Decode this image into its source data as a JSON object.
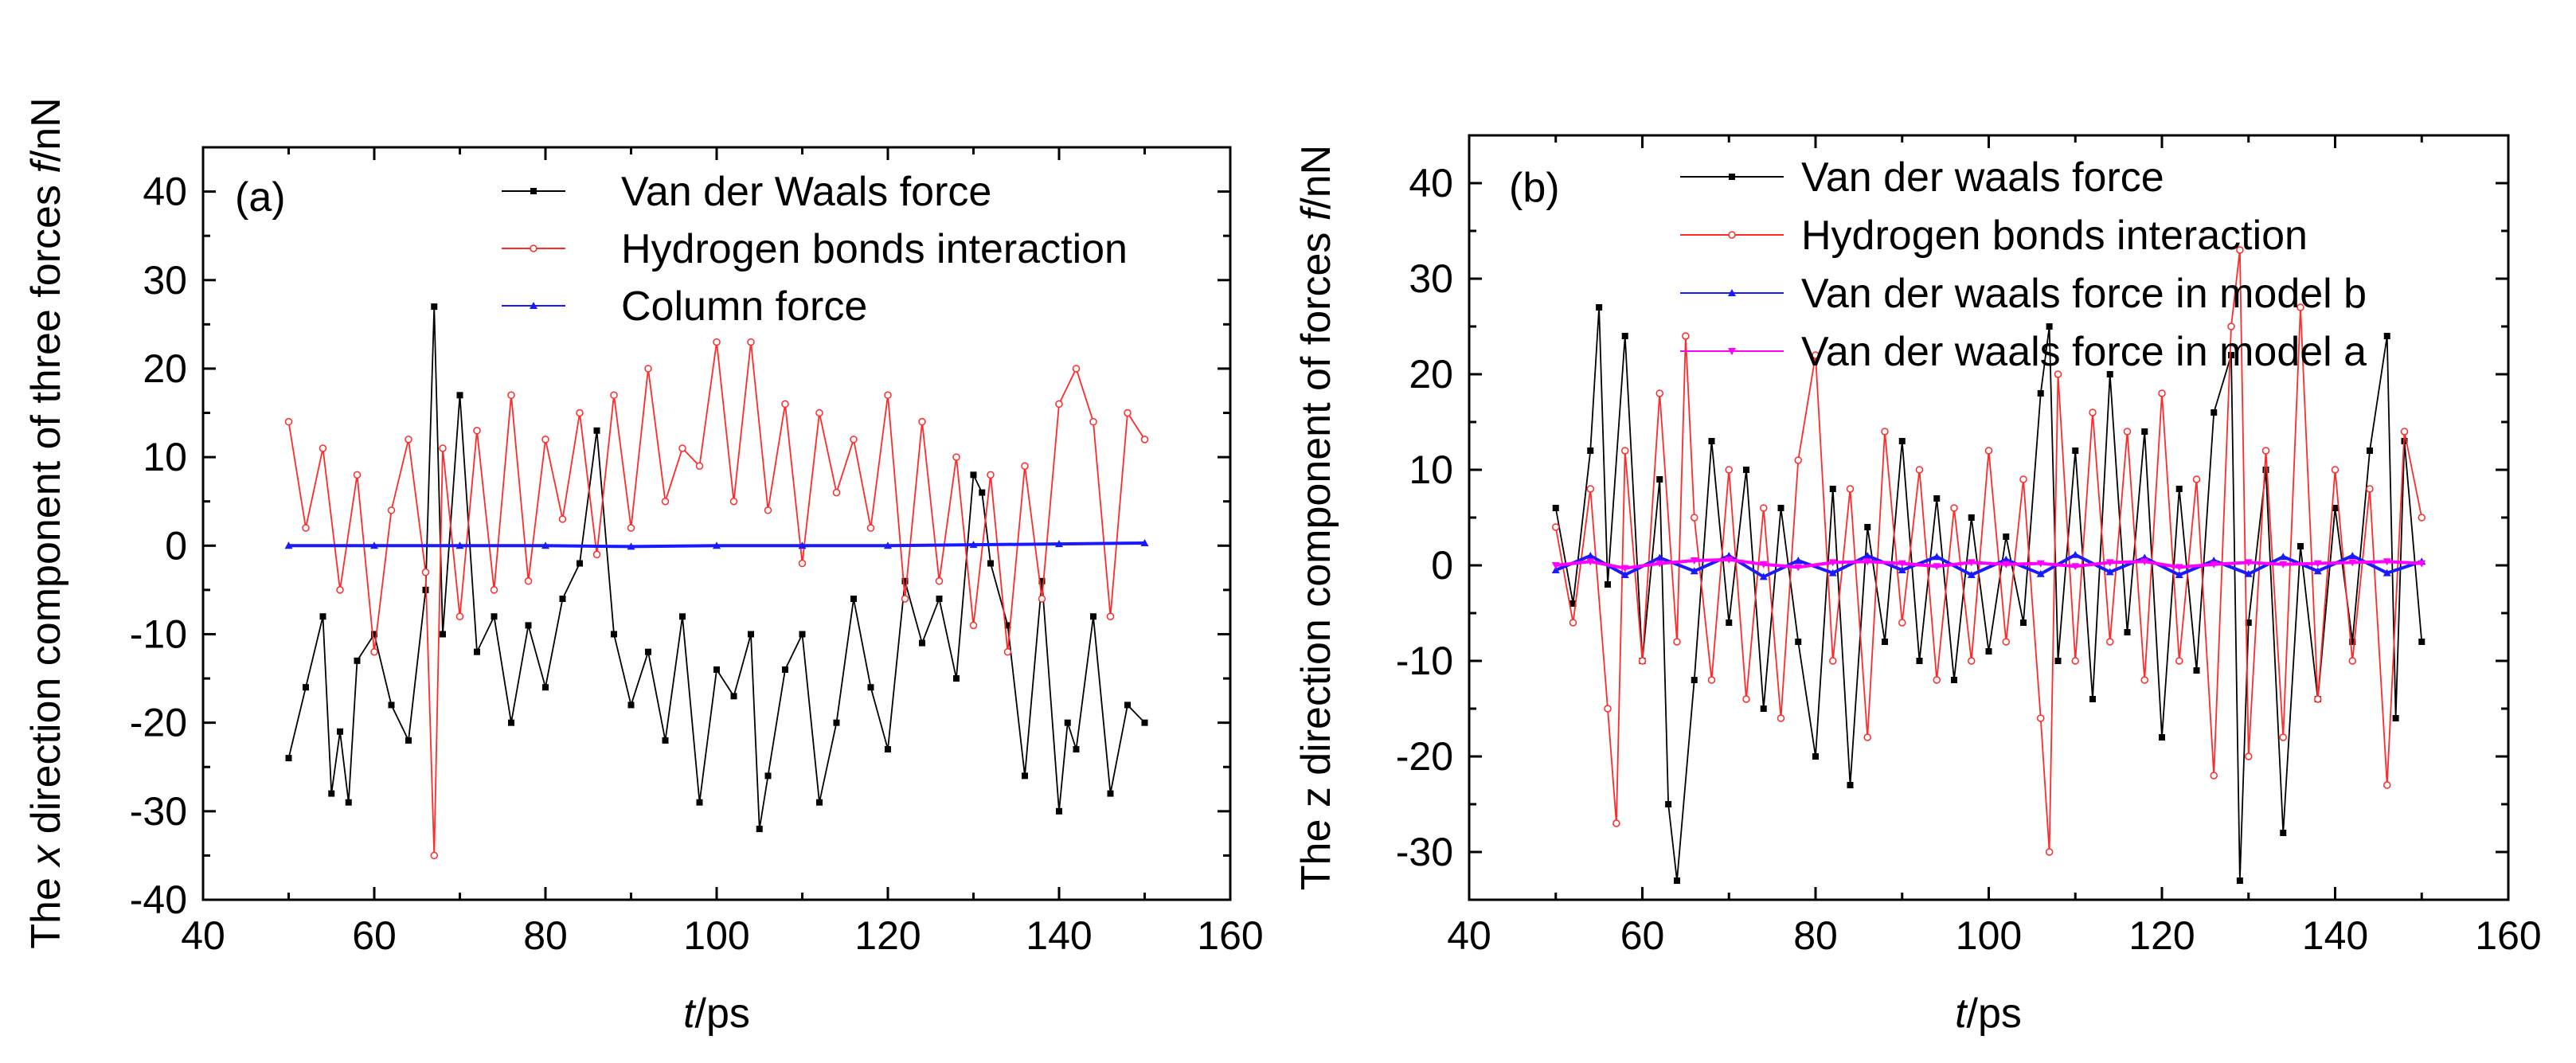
{
  "chart_data": [
    {
      "type": "line",
      "panel_label": "(a)",
      "xlabel_italic": "t",
      "xlabel_rest": "/ps",
      "ylabel_pre": "The ",
      "ylabel_italic": "x",
      "ylabel_mid": " direction component of three forces  ",
      "ylabel_italic2": "f",
      "ylabel_post": "/nN",
      "xlim": [
        40,
        160
      ],
      "ylim": [
        -40,
        45
      ],
      "xticks": [
        40,
        60,
        80,
        100,
        120,
        140,
        160
      ],
      "yticks": [
        -40,
        -30,
        -20,
        -10,
        0,
        10,
        20,
        30,
        40
      ],
      "legend_position": "top-right",
      "series": [
        {
          "name": "Van der Waals force",
          "color": "#000000",
          "marker": "square",
          "x": [
            50,
            52,
            54,
            55,
            56,
            57,
            58,
            60,
            62,
            64,
            66,
            67,
            68,
            70,
            72,
            74,
            76,
            78,
            80,
            82,
            84,
            86,
            88,
            90,
            92,
            94,
            96,
            98,
            100,
            102,
            104,
            105,
            106,
            108,
            110,
            112,
            114,
            116,
            118,
            120,
            122,
            124,
            126,
            128,
            130,
            131,
            132,
            134,
            136,
            138,
            140,
            141,
            142,
            144,
            146,
            148,
            150
          ],
          "values": [
            -24,
            -16,
            -8,
            -28,
            -21,
            -29,
            -13,
            -10,
            -18,
            -22,
            -5,
            27,
            -10,
            17,
            -12,
            -8,
            -20,
            -9,
            -16,
            -6,
            -2,
            13,
            -10,
            -18,
            -12,
            -22,
            -8,
            -29,
            -14,
            -17,
            -10,
            -32,
            -26,
            -14,
            -10,
            -29,
            -20,
            -6,
            -16,
            -23,
            -4,
            -11,
            -6,
            -15,
            8,
            6,
            -2,
            -9,
            -26,
            -4,
            -30,
            -20,
            -23,
            -8,
            -28,
            -18,
            -20
          ]
        },
        {
          "name": "Hydrogen bonds interaction",
          "color": "#ff2a2a",
          "marker": "circle",
          "x": [
            50,
            52,
            54,
            56,
            58,
            60,
            62,
            64,
            66,
            67,
            68,
            70,
            72,
            74,
            76,
            78,
            80,
            82,
            84,
            86,
            88,
            90,
            92,
            94,
            96,
            98,
            100,
            102,
            104,
            106,
            108,
            110,
            112,
            114,
            116,
            118,
            120,
            122,
            124,
            126,
            128,
            130,
            132,
            134,
            136,
            138,
            140,
            142,
            144,
            146,
            148,
            150
          ],
          "values": [
            14,
            2,
            11,
            -5,
            8,
            -12,
            4,
            12,
            -3,
            -35,
            11,
            -8,
            13,
            -5,
            17,
            -4,
            12,
            3,
            15,
            -1,
            17,
            2,
            20,
            5,
            11,
            9,
            23,
            5,
            23,
            4,
            16,
            -2,
            15,
            6,
            12,
            2,
            17,
            -6,
            14,
            -4,
            10,
            -9,
            8,
            -12,
            9,
            -6,
            16,
            20,
            14,
            -8,
            15,
            12
          ]
        },
        {
          "name": "Column force",
          "color": "#1a1aff",
          "marker": "triangle",
          "x": [
            50,
            60,
            70,
            80,
            90,
            100,
            110,
            120,
            130,
            140,
            150
          ],
          "values": [
            0,
            0,
            0,
            0,
            -0.1,
            0,
            0,
            0,
            0.1,
            0.2,
            0.3
          ]
        }
      ]
    },
    {
      "type": "line",
      "panel_label": "(b)",
      "xlabel_italic": "t",
      "xlabel_rest": "/ps",
      "ylabel_pre": "The z direction component of forces ",
      "ylabel_italic": "f",
      "ylabel_post": "/nN",
      "xlim": [
        40,
        160
      ],
      "ylim": [
        -35,
        45
      ],
      "xticks": [
        40,
        60,
        80,
        100,
        120,
        140,
        160
      ],
      "yticks": [
        -30,
        -20,
        -10,
        0,
        10,
        20,
        30,
        40
      ],
      "legend_position": "top-right",
      "series": [
        {
          "name": "Van der waals force",
          "color": "#000000",
          "marker": "square",
          "x": [
            50,
            52,
            54,
            55,
            56,
            58,
            60,
            62,
            63,
            64,
            66,
            68,
            70,
            72,
            74,
            76,
            78,
            80,
            82,
            84,
            86,
            88,
            90,
            92,
            94,
            96,
            98,
            100,
            102,
            104,
            106,
            107,
            108,
            110,
            112,
            114,
            116,
            118,
            120,
            122,
            124,
            126,
            128,
            129,
            130,
            132,
            134,
            136,
            138,
            140,
            142,
            144,
            146,
            147,
            148,
            150
          ],
          "values": [
            6,
            -4,
            12,
            27,
            -2,
            24,
            -10,
            9,
            -25,
            -33,
            -12,
            13,
            -6,
            10,
            -15,
            6,
            -8,
            -20,
            8,
            -23,
            4,
            -8,
            13,
            -10,
            7,
            -12,
            5,
            -9,
            3,
            -6,
            18,
            25,
            -10,
            12,
            -14,
            20,
            -7,
            14,
            -18,
            8,
            -11,
            16,
            22,
            -33,
            -6,
            10,
            -28,
            2,
            -14,
            6,
            -8,
            12,
            24,
            -16,
            13,
            -8
          ]
        },
        {
          "name": "Hydrogen bonds interaction",
          "color": "#ff2a2a",
          "marker": "circle",
          "x": [
            50,
            52,
            54,
            56,
            57,
            58,
            60,
            62,
            64,
            65,
            66,
            68,
            70,
            72,
            74,
            76,
            78,
            80,
            82,
            84,
            86,
            88,
            90,
            92,
            94,
            96,
            98,
            100,
            102,
            104,
            106,
            107,
            108,
            110,
            112,
            114,
            116,
            118,
            120,
            122,
            124,
            126,
            128,
            129,
            130,
            132,
            134,
            136,
            138,
            140,
            142,
            144,
            146,
            148,
            150
          ],
          "values": [
            4,
            -6,
            8,
            -15,
            -27,
            12,
            -10,
            18,
            -8,
            24,
            5,
            -12,
            10,
            -14,
            6,
            -16,
            11,
            22,
            -10,
            8,
            -18,
            14,
            -6,
            10,
            -12,
            6,
            -10,
            12,
            -8,
            9,
            -16,
            -30,
            20,
            -10,
            16,
            -8,
            14,
            -12,
            18,
            -10,
            9,
            -22,
            25,
            33,
            -20,
            12,
            -18,
            27,
            -14,
            10,
            -10,
            8,
            -23,
            14,
            5
          ]
        },
        {
          "name": "Van der waals force in model b",
          "color": "#1a1aff",
          "marker": "triangle",
          "x": [
            50,
            54,
            58,
            62,
            66,
            70,
            74,
            78,
            82,
            86,
            90,
            94,
            98,
            102,
            106,
            110,
            114,
            118,
            122,
            126,
            130,
            134,
            138,
            142,
            146,
            150
          ],
          "values": [
            -0.5,
            1,
            -1,
            0.8,
            -0.6,
            1,
            -1.2,
            0.5,
            -0.8,
            1,
            -0.5,
            0.9,
            -1,
            0.6,
            -0.9,
            1.1,
            -0.7,
            0.8,
            -1,
            0.5,
            -0.9,
            0.9,
            -0.6,
            1,
            -0.8,
            0.4
          ]
        },
        {
          "name": "Van der waals force in model a",
          "color": "#ff00ff",
          "marker": "inverted-triangle",
          "x": [
            50,
            54,
            58,
            62,
            66,
            70,
            74,
            78,
            82,
            86,
            90,
            94,
            98,
            102,
            106,
            110,
            114,
            118,
            122,
            126,
            130,
            134,
            138,
            142,
            146,
            150
          ],
          "values": [
            0,
            0.4,
            -0.3,
            0.2,
            0.5,
            0.6,
            0.1,
            -0.2,
            0.3,
            0.4,
            0.2,
            -0.1,
            0.3,
            0.1,
            0.2,
            -0.1,
            0.3,
            0.4,
            -0.2,
            0.1,
            0.3,
            0.1,
            0.2,
            0.3,
            0.4,
            0.2
          ]
        }
      ]
    }
  ]
}
